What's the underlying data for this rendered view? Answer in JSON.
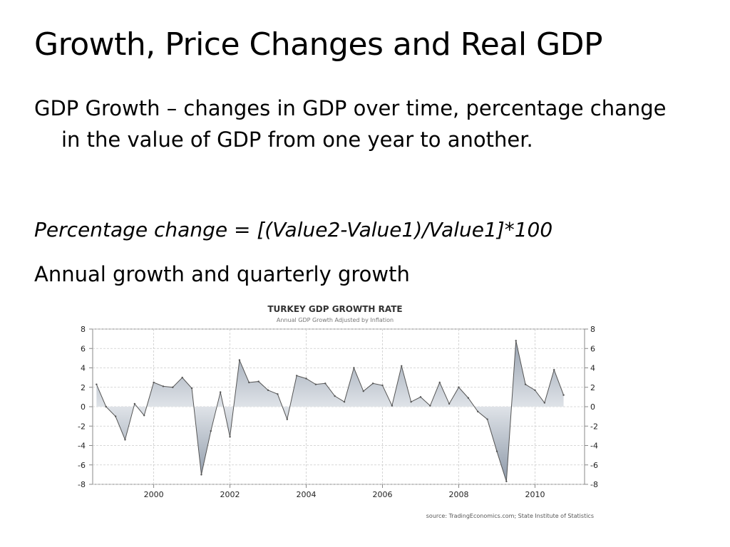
{
  "slide": {
    "title": "Growth, Price Changes and Real GDP",
    "bullet_1": "GDP Growth – changes in GDP over time, percentage change in the value of GDP from one year to another.",
    "bullet_2": "Percentage change = [(Value2-Value1)/Value1]*100",
    "bullet_3": "Annual growth and quarterly growth"
  },
  "chart_data": {
    "type": "area",
    "title": "TURKEY GDP GROWTH RATE",
    "subtitle": "Annual GDP Growth Adjusted by Inflation",
    "source": "source: TradingEconomics.com; State Institute of Statistics",
    "xlabel": "",
    "ylabel": "",
    "ylim": [
      -8,
      8
    ],
    "y_ticks": [
      8,
      6,
      4,
      2,
      0,
      -2,
      -4,
      -6,
      -8
    ],
    "x_ticks": [
      2000,
      2002,
      2004,
      2006,
      2008,
      2010
    ],
    "xlim": [
      1998.4,
      2011.3
    ],
    "grid": true,
    "colors": {
      "line": "#555555",
      "fill_top": "#8a96a6",
      "fill_mid": "#dfe3e8",
      "fill_bottom": "#8a96a6",
      "grid": "#cccccc",
      "axis": "#888888"
    },
    "series": [
      {
        "x": [
          1998.5,
          1998.75,
          1999.0,
          1999.25,
          1999.5,
          1999.75,
          2000.0,
          2000.25,
          2000.5,
          2000.75,
          2001.0,
          2001.25,
          2001.5,
          2001.75,
          2002.0,
          2002.25,
          2002.5,
          2002.75,
          2003.0,
          2003.25,
          2003.5,
          2003.75,
          2004.0,
          2004.25,
          2004.5,
          2004.75,
          2005.0,
          2005.25,
          2005.5,
          2005.75,
          2006.0,
          2006.25,
          2006.5,
          2006.75,
          2007.0,
          2007.25,
          2007.5,
          2007.75,
          2008.0,
          2008.25,
          2008.5,
          2008.75,
          2009.0,
          2009.25,
          2009.5,
          2009.75,
          2010.0,
          2010.25,
          2010.5,
          2010.75
        ],
        "values": [
          2.3,
          0.0,
          -1.0,
          -3.4,
          0.3,
          -0.9,
          2.5,
          2.1,
          2.0,
          3.0,
          1.9,
          -7.0,
          -2.5,
          1.5,
          -3.1,
          4.8,
          2.5,
          2.6,
          1.7,
          1.3,
          -1.3,
          3.2,
          2.9,
          2.3,
          2.4,
          1.1,
          0.5,
          4.0,
          1.6,
          2.4,
          2.2,
          0.1,
          4.2,
          0.5,
          1.0,
          0.1,
          2.5,
          0.3,
          2.0,
          0.9,
          -0.5,
          -1.3,
          -4.6,
          -7.7,
          6.8,
          2.3,
          1.7,
          0.4,
          3.8,
          1.2
        ]
      }
    ]
  }
}
